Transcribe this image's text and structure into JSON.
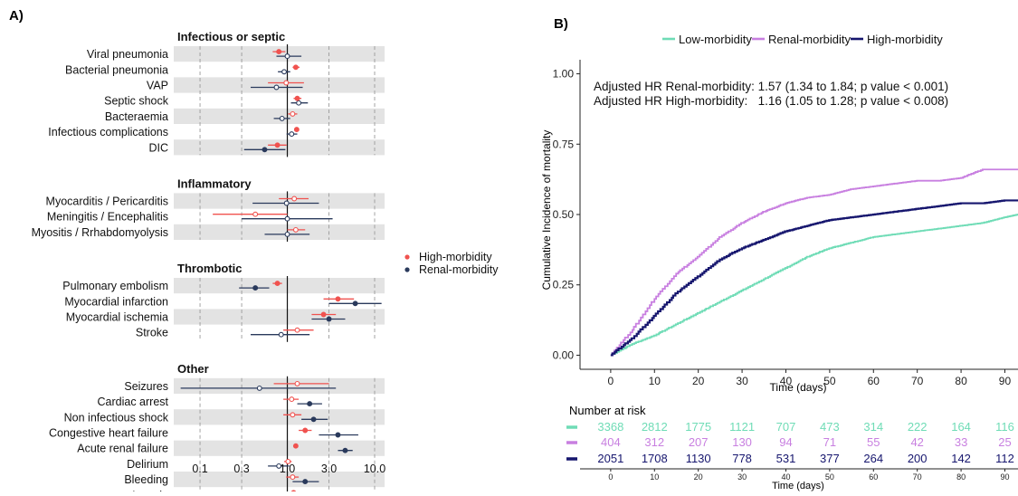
{
  "chart_data": [
    {
      "type": "forest",
      "panel_label": "A)",
      "xscale": "log",
      "xlim": [
        0.05,
        13
      ],
      "xticks": [
        0.1,
        0.3,
        1.0,
        3.0,
        10.0
      ],
      "xtick_labels": [
        "0.1",
        "0.3",
        "1.0",
        "3.0",
        "10.0"
      ],
      "reference_line": 1.0,
      "grid": "dashed vertical",
      "legend_position": "right",
      "legend": [
        {
          "name": "High-morbidity",
          "color": "#f0524f"
        },
        {
          "name": "Renal-morbidity",
          "color": "#2a3a5c"
        }
      ],
      "groups": [
        {
          "title": "Infectious or septic",
          "rows": [
            {
              "label": "Viral pneumonia",
              "high": {
                "est": 0.8,
                "lo": 0.68,
                "hi": 0.95,
                "sig": true
              },
              "renal": {
                "est": 1.0,
                "lo": 0.75,
                "hi": 1.45,
                "sig": false
              }
            },
            {
              "label": "Bacterial pneumonia",
              "high": {
                "est": 1.25,
                "lo": 1.15,
                "hi": 1.38,
                "sig": true
              },
              "renal": {
                "est": 0.92,
                "lo": 0.78,
                "hi": 1.08,
                "sig": false
              }
            },
            {
              "label": "VAP",
              "high": {
                "est": 0.97,
                "lo": 0.6,
                "hi": 1.55,
                "sig": false
              },
              "renal": {
                "est": 0.75,
                "lo": 0.38,
                "hi": 1.5,
                "sig": false
              }
            },
            {
              "label": "Septic shock",
              "high": {
                "est": 1.3,
                "lo": 1.18,
                "hi": 1.45,
                "sig": true
              },
              "renal": {
                "est": 1.35,
                "lo": 1.1,
                "hi": 1.72,
                "sig": false
              }
            },
            {
              "label": "Bacteraemia",
              "high": {
                "est": 1.15,
                "lo": 1.02,
                "hi": 1.3,
                "sig": false
              },
              "renal": {
                "est": 0.87,
                "lo": 0.7,
                "hi": 1.08,
                "sig": false
              }
            },
            {
              "label": "Infectious complications",
              "high": {
                "est": 1.28,
                "lo": 1.2,
                "hi": 1.36,
                "sig": true
              },
              "renal": {
                "est": 1.12,
                "lo": 0.98,
                "hi": 1.3,
                "sig": false
              }
            },
            {
              "label": "DIC",
              "high": {
                "est": 0.77,
                "lo": 0.6,
                "hi": 0.98,
                "sig": true
              },
              "renal": {
                "est": 0.55,
                "lo": 0.32,
                "hi": 0.95,
                "sig": true
              }
            }
          ]
        },
        {
          "title": "Inflammatory",
          "rows": [
            {
              "label": "Myocarditis / Pericarditis",
              "high": {
                "est": 1.2,
                "lo": 0.8,
                "hi": 1.75,
                "sig": false
              },
              "renal": {
                "est": 0.98,
                "lo": 0.4,
                "hi": 2.3,
                "sig": false
              }
            },
            {
              "label": "Meningitis / Encephalitis",
              "high": {
                "est": 0.43,
                "lo": 0.14,
                "hi": 1.0,
                "sig": false
              },
              "renal": {
                "est": 1.0,
                "lo": 0.3,
                "hi": 3.3,
                "sig": false
              }
            },
            {
              "label": "Myositis / Rrhabdomyolysis",
              "high": {
                "est": 1.25,
                "lo": 1.0,
                "hi": 1.6,
                "sig": false
              },
              "renal": {
                "est": 1.0,
                "lo": 0.55,
                "hi": 1.8,
                "sig": false
              }
            }
          ]
        },
        {
          "title": "Thrombotic",
          "rows": [
            {
              "label": "Pulmonary embolism",
              "high": {
                "est": 0.77,
                "lo": 0.68,
                "hi": 0.87,
                "sig": true
              },
              "renal": {
                "est": 0.43,
                "lo": 0.28,
                "hi": 0.62,
                "sig": true
              }
            },
            {
              "label": "Myocardial infarction",
              "high": {
                "est": 3.8,
                "lo": 2.6,
                "hi": 5.8,
                "sig": true
              },
              "renal": {
                "est": 6.0,
                "lo": 3.0,
                "hi": 12.0,
                "sig": true
              }
            },
            {
              "label": "Myocardial ischemia",
              "high": {
                "est": 2.6,
                "lo": 1.9,
                "hi": 3.6,
                "sig": true
              },
              "renal": {
                "est": 3.0,
                "lo": 1.9,
                "hi": 4.6,
                "sig": true
              }
            },
            {
              "label": "Stroke",
              "high": {
                "est": 1.3,
                "lo": 0.9,
                "hi": 2.0,
                "sig": false
              },
              "renal": {
                "est": 0.85,
                "lo": 0.38,
                "hi": 1.8,
                "sig": false
              }
            }
          ]
        },
        {
          "title": "Other",
          "rows": [
            {
              "label": "Seizures",
              "high": {
                "est": 1.3,
                "lo": 0.7,
                "hi": 3.0,
                "sig": false
              },
              "renal": {
                "est": 0.48,
                "lo": 0.06,
                "hi": 3.6,
                "sig": false
              }
            },
            {
              "label": "Cardiac arrest",
              "high": {
                "est": 1.12,
                "lo": 0.9,
                "hi": 1.35,
                "sig": false
              },
              "renal": {
                "est": 1.8,
                "lo": 1.3,
                "hi": 2.5,
                "sig": true
              }
            },
            {
              "label": "Non infectious shock",
              "high": {
                "est": 1.15,
                "lo": 0.9,
                "hi": 1.45,
                "sig": false
              },
              "renal": {
                "est": 2.0,
                "lo": 1.45,
                "hi": 2.9,
                "sig": true
              }
            },
            {
              "label": "Congestive heart failure",
              "high": {
                "est": 1.6,
                "lo": 1.35,
                "hi": 1.9,
                "sig": true
              },
              "renal": {
                "est": 3.8,
                "lo": 2.3,
                "hi": 6.5,
                "sig": true
              }
            },
            {
              "label": "Acute renal failure",
              "high": {
                "est": 1.25,
                "lo": 1.17,
                "hi": 1.33,
                "sig": true
              },
              "renal": {
                "est": 4.6,
                "lo": 3.8,
                "hi": 5.6,
                "sig": true
              }
            },
            {
              "label": "Delirium",
              "high": {
                "est": 1.02,
                "lo": 0.92,
                "hi": 1.12,
                "sig": false
              },
              "renal": {
                "est": 0.8,
                "lo": 0.6,
                "hi": 1.05,
                "sig": false
              }
            },
            {
              "label": "Bleeding",
              "high": {
                "est": 1.15,
                "lo": 0.97,
                "hi": 1.35,
                "sig": false
              },
              "renal": {
                "est": 1.6,
                "lo": 1.15,
                "hi": 2.3,
                "sig": true
              }
            },
            {
              "label": "Anemia",
              "high": {
                "est": 1.18,
                "lo": 1.1,
                "hi": 1.27,
                "sig": true
              },
              "renal": {
                "est": 1.95,
                "lo": 1.6,
                "hi": 2.4,
                "sig": true
              }
            }
          ]
        }
      ]
    },
    {
      "type": "line",
      "subtype": "step",
      "panel_label": "B)",
      "xlabel": "Time (days)",
      "ylabel": "Cumulative Incidence of mortality",
      "xlim": [
        -7,
        93
      ],
      "ylim": [
        -0.05,
        1.05
      ],
      "xticks": [
        0,
        10,
        20,
        30,
        40,
        50,
        60,
        70,
        80,
        90
      ],
      "yticks": [
        0.0,
        0.25,
        0.5,
        0.75,
        1.0
      ],
      "ytick_labels": [
        "0.00",
        "0.25",
        "0.50",
        "0.75",
        "1.00"
      ],
      "grid": false,
      "legend_position": "top",
      "annotations": [
        "Adjusted HR Renal-morbidity: 1.57 (1.34 to 1.84; p value < 0.001)",
        "Adjusted HR High-morbidity:   1.16 (1.05 to 1.28; p value < 0.008)"
      ],
      "series": [
        {
          "name": "Low-morbidity",
          "color": "#6fdcb6",
          "x": [
            0,
            5,
            10,
            15,
            20,
            25,
            30,
            35,
            40,
            45,
            50,
            55,
            60,
            65,
            70,
            75,
            80,
            85,
            90,
            93
          ],
          "y": [
            0.0,
            0.04,
            0.07,
            0.11,
            0.15,
            0.19,
            0.23,
            0.27,
            0.31,
            0.35,
            0.38,
            0.4,
            0.42,
            0.43,
            0.44,
            0.45,
            0.46,
            0.47,
            0.49,
            0.5
          ]
        },
        {
          "name": "Renal-morbidity",
          "color": "#c87fe0",
          "x": [
            0,
            5,
            10,
            15,
            20,
            25,
            30,
            35,
            40,
            45,
            50,
            55,
            60,
            65,
            70,
            75,
            80,
            85,
            90,
            93
          ],
          "y": [
            0.0,
            0.09,
            0.2,
            0.29,
            0.35,
            0.42,
            0.47,
            0.51,
            0.54,
            0.56,
            0.57,
            0.59,
            0.6,
            0.61,
            0.62,
            0.62,
            0.63,
            0.66,
            0.66,
            0.66
          ]
        },
        {
          "name": "High-morbidity",
          "color": "#16166e",
          "x": [
            0,
            5,
            10,
            15,
            20,
            25,
            30,
            35,
            40,
            45,
            50,
            55,
            60,
            65,
            70,
            75,
            80,
            85,
            90,
            93
          ],
          "y": [
            0.0,
            0.06,
            0.14,
            0.22,
            0.28,
            0.34,
            0.38,
            0.41,
            0.44,
            0.46,
            0.48,
            0.49,
            0.5,
            0.51,
            0.52,
            0.53,
            0.54,
            0.54,
            0.55,
            0.55
          ]
        }
      ]
    },
    {
      "type": "table",
      "title": "Number at risk",
      "xlabel": "Time (days)",
      "x": [
        0,
        10,
        20,
        30,
        40,
        50,
        60,
        70,
        80,
        90
      ],
      "rows": [
        {
          "name": "Low-morbidity",
          "color": "#6fdcb6",
          "values": [
            3368,
            2812,
            1775,
            1121,
            707,
            473,
            314,
            222,
            164,
            116
          ]
        },
        {
          "name": "Renal-morbidity",
          "color": "#c87fe0",
          "values": [
            404,
            312,
            207,
            130,
            94,
            71,
            55,
            42,
            33,
            25
          ]
        },
        {
          "name": "High-morbidity",
          "color": "#16166e",
          "values": [
            2051,
            1708,
            1130,
            778,
            531,
            377,
            264,
            200,
            142,
            112
          ]
        }
      ]
    }
  ]
}
